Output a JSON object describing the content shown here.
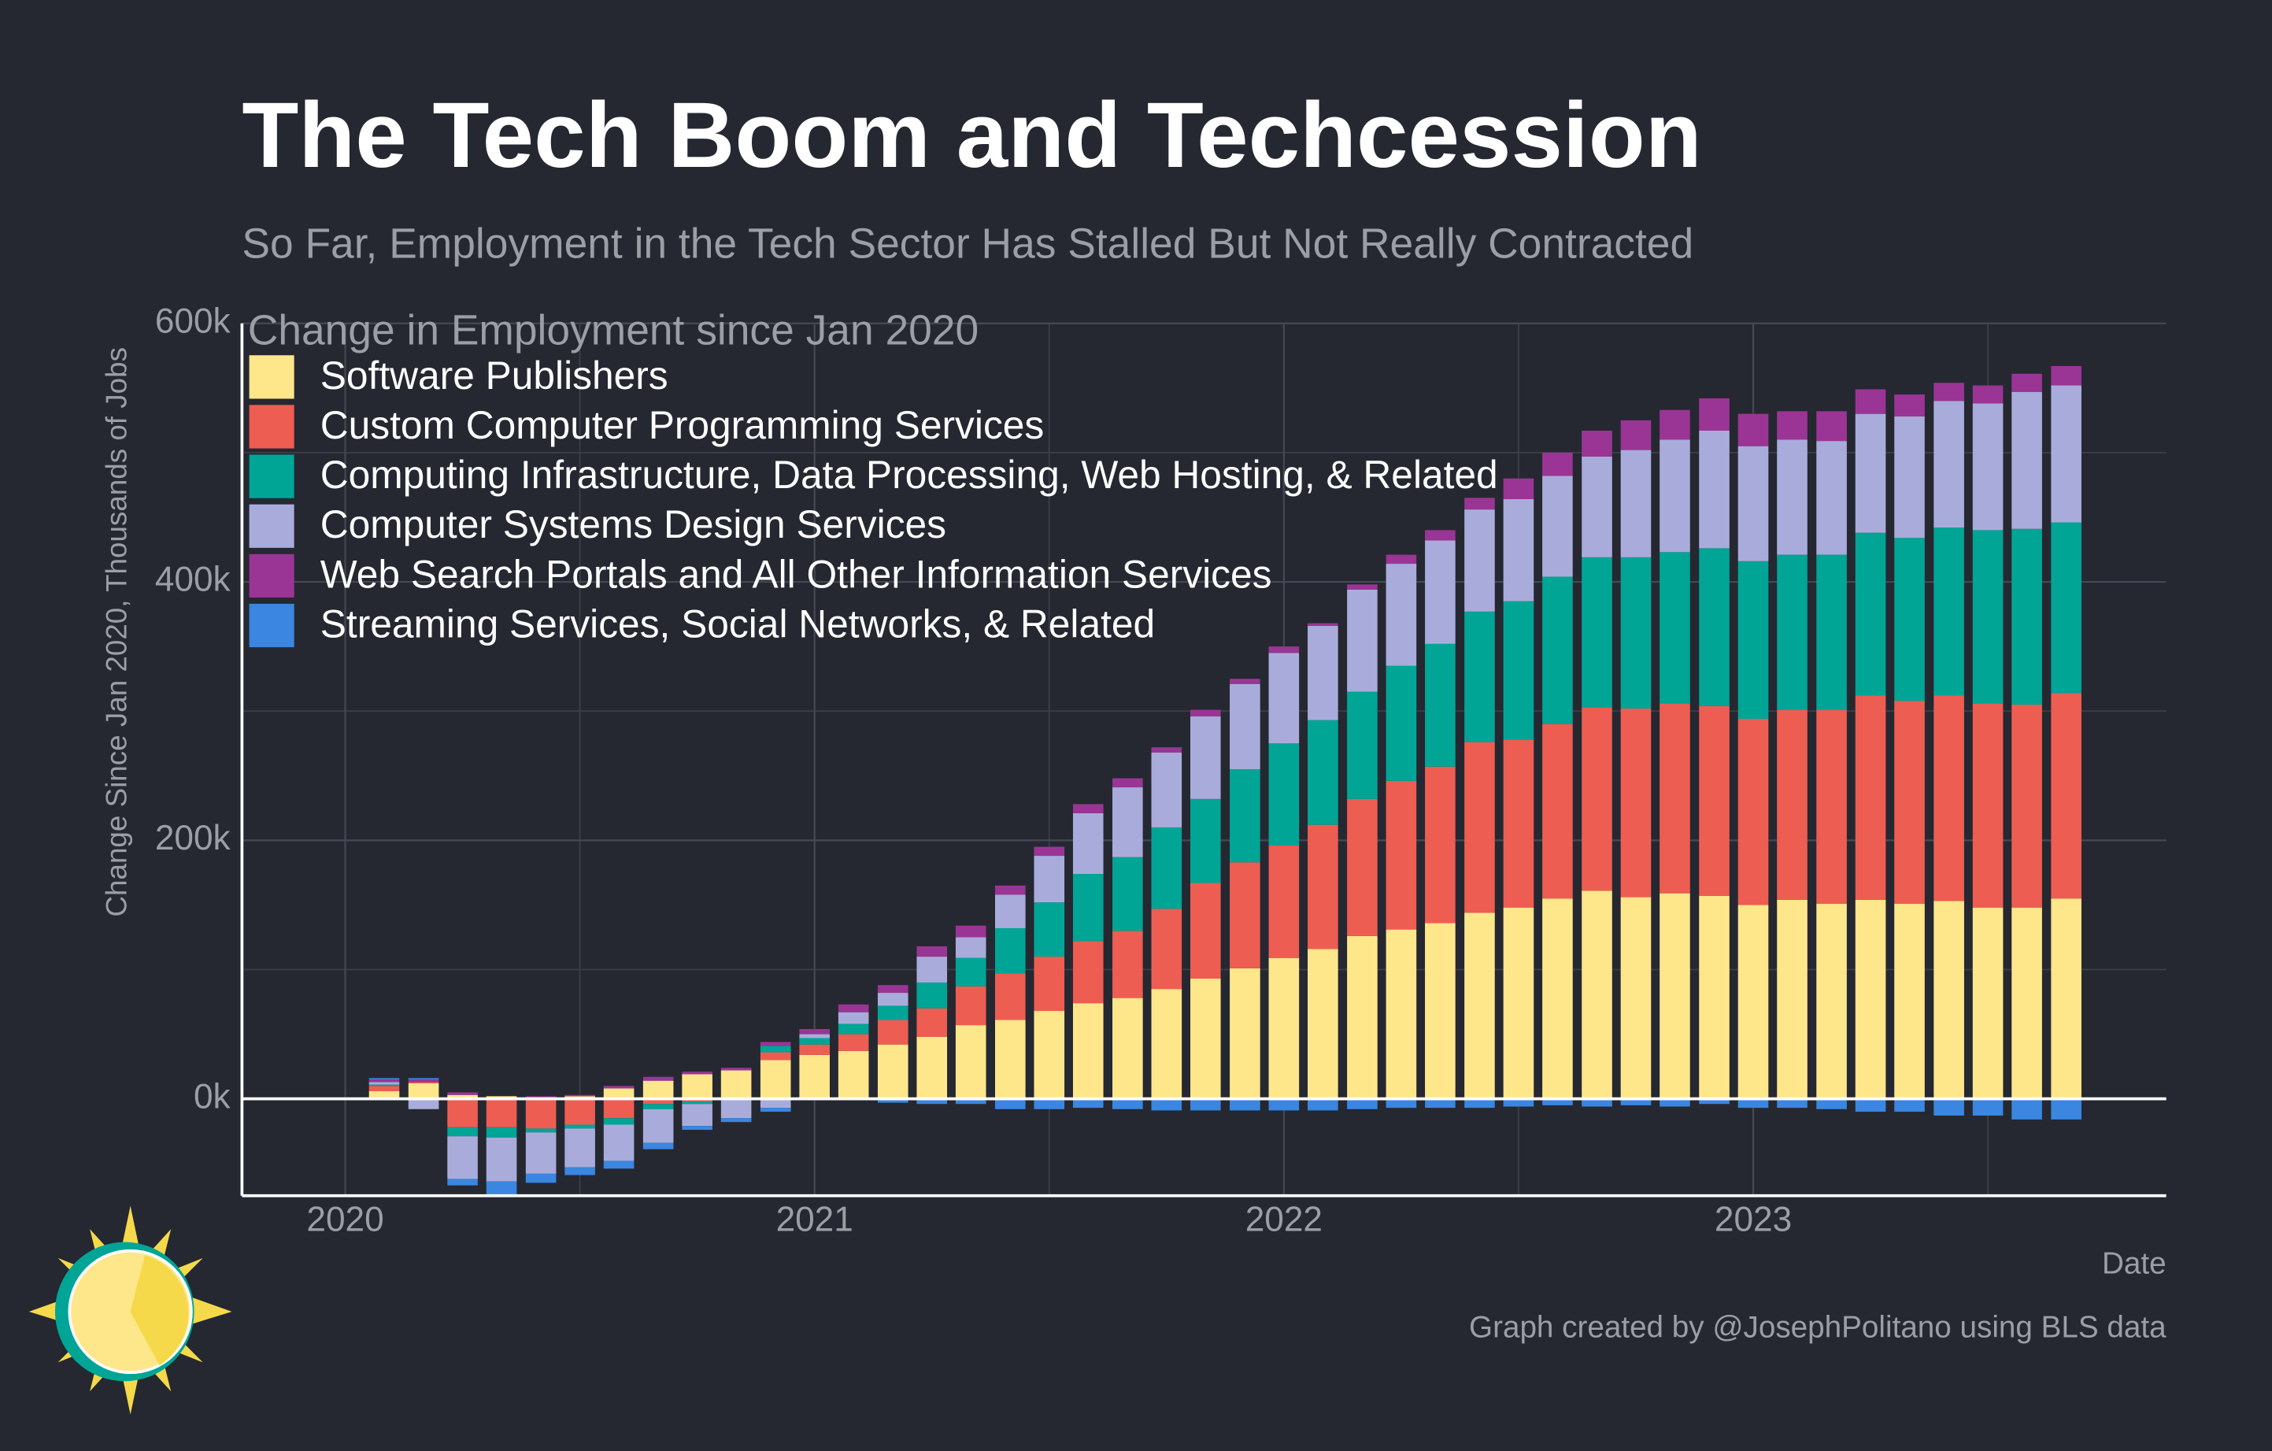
{
  "chart_data": {
    "type": "stacked_bar",
    "title": "The Tech Boom and Techcession",
    "subtitle": "So Far, Employment in the Tech Sector Has Stalled But Not Really Contracted",
    "legend_title": "Change in Employment since Jan 2020",
    "y_label": "Change Since Jan 2020, Thousands of Jobs",
    "x_label": "Date",
    "caption": "Graph created by @JosephPolitano using BLS data",
    "legend": "top-left",
    "grid": true,
    "x": [
      2020,
      2020.083,
      2020.167,
      2020.25,
      2020.333,
      2020.417,
      2020.5,
      2020.583,
      2020.667,
      2020.75,
      2020.833,
      2020.917,
      2021,
      2021.083,
      2021.167,
      2021.25,
      2021.333,
      2021.417,
      2021.5,
      2021.583,
      2021.667,
      2021.75,
      2021.833,
      2021.917,
      2022,
      2022.083,
      2022.167,
      2022.25,
      2022.333,
      2022.417,
      2022.5,
      2022.583,
      2022.667,
      2022.75,
      2022.833,
      2022.917,
      2023,
      2023.083,
      2023.167,
      2023.25,
      2023.333,
      2023.417,
      2023.5,
      2023.583,
      2023.667
    ],
    "xlim": [
      2019.78,
      2023.88
    ],
    "xticks": [
      2020,
      2021,
      2022,
      2023
    ],
    "x_minor_ticks": [
      2020.5,
      2021.5,
      2022.5,
      2023.5
    ],
    "ylim": [
      -75,
      600
    ],
    "yticks": [
      {
        "value": 0,
        "label": "0k"
      },
      {
        "value": 200,
        "label": "200k"
      },
      {
        "value": 400,
        "label": "400k"
      },
      {
        "value": 600,
        "label": "600k"
      }
    ],
    "y_minor_ticks": [
      100,
      300,
      500
    ],
    "series": [
      {
        "name": "Software Publishers",
        "color": "#fee68b",
        "values": [
          0,
          6,
          12,
          3,
          2,
          1,
          2,
          8,
          14,
          19,
          22,
          30,
          34,
          37,
          42,
          48,
          57,
          61,
          68,
          74,
          78,
          85,
          93,
          101,
          109,
          116,
          126,
          131,
          136,
          144,
          148,
          155,
          161,
          156,
          159,
          157,
          150,
          154,
          151,
          154,
          151,
          153,
          148,
          148,
          155
        ]
      },
      {
        "name": "Custom Computer Programming Services",
        "color": "#ee5d52",
        "values": [
          0,
          4,
          1,
          -22,
          -22,
          -23,
          -20,
          -15,
          -4,
          -2,
          -1,
          6,
          8,
          13,
          19,
          22,
          30,
          36,
          42,
          48,
          52,
          62,
          74,
          82,
          87,
          96,
          106,
          115,
          121,
          132,
          130,
          135,
          142,
          146,
          147,
          147,
          144,
          147,
          150,
          158,
          157,
          159,
          158,
          157,
          159
        ]
      },
      {
        "name": "Computing Infrastructure, Data Processing, Web Hosting, & Related",
        "color": "#00a596",
        "values": [
          0,
          1,
          0,
          -7,
          -8,
          -3,
          -3,
          -5,
          -4,
          -2,
          0,
          5,
          5,
          8,
          11,
          20,
          22,
          35,
          42,
          52,
          57,
          63,
          65,
          72,
          79,
          81,
          83,
          89,
          95,
          101,
          107,
          114,
          116,
          117,
          117,
          122,
          122,
          120,
          120,
          126,
          126,
          130,
          134,
          136,
          132
        ]
      },
      {
        "name": "Computer Systems Design Services",
        "color": "#a9acda",
        "values": [
          0,
          2,
          -8,
          -33,
          -34,
          -32,
          -30,
          -28,
          -26,
          -17,
          -14,
          -7,
          3,
          9,
          10,
          20,
          16,
          26,
          36,
          47,
          54,
          58,
          64,
          66,
          70,
          73,
          79,
          79,
          80,
          79,
          79,
          78,
          78,
          83,
          87,
          91,
          89,
          89,
          88,
          92,
          94,
          98,
          98,
          106,
          106
        ]
      },
      {
        "name": "Web Search Portals and All Other Information Services",
        "color": "#9a3595",
        "values": [
          0,
          2,
          2,
          2,
          0,
          1,
          1,
          2,
          3,
          2,
          2,
          3,
          4,
          6,
          6,
          8,
          9,
          7,
          7,
          7,
          7,
          4,
          5,
          4,
          5,
          2,
          4,
          7,
          8,
          9,
          16,
          18,
          20,
          23,
          23,
          25,
          25,
          22,
          23,
          19,
          17,
          14,
          14,
          14,
          15
        ]
      },
      {
        "name": "Streaming Services, Social Networks, & Related",
        "color": "#3a86e0",
        "values": [
          0,
          1,
          1,
          -5,
          -10,
          -7,
          -6,
          -6,
          -5,
          -3,
          -3,
          -3,
          -1,
          -1,
          -3,
          -4,
          -4,
          -8,
          -8,
          -7,
          -8,
          -9,
          -9,
          -9,
          -9,
          -9,
          -8,
          -7,
          -7,
          -7,
          -6,
          -5,
          -6,
          -5,
          -6,
          -4,
          -7,
          -7,
          -8,
          -10,
          -10,
          -13,
          -13,
          -16,
          -16
        ]
      }
    ]
  }
}
